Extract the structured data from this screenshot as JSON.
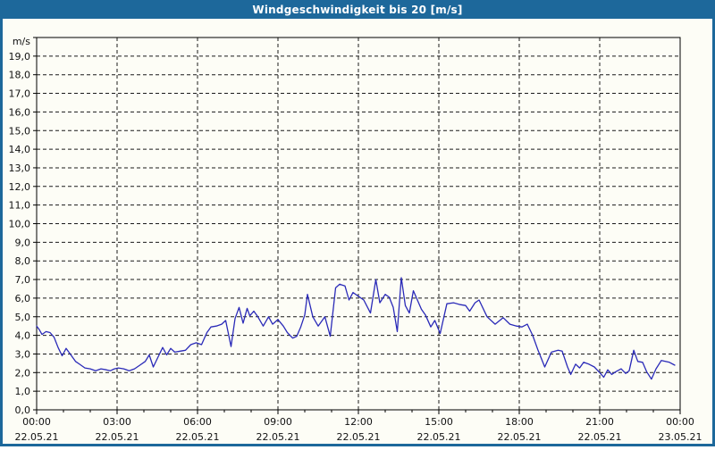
{
  "window": {
    "title": "Windgeschwindigkeit bis 20 [m/s]",
    "title_bar_color": "#1d689b",
    "border_color": "#1d689b",
    "background_color": "#fdfdf6"
  },
  "chart_data": {
    "type": "line",
    "title": "Windgeschwindigkeit bis 20 [m/s]",
    "ylabel": "m/s",
    "xlabel": "",
    "ylim": [
      0,
      20
    ],
    "y_tick_step": 1,
    "y_tick_labels": [
      "0,0",
      "1,0",
      "2,0",
      "3,0",
      "4,0",
      "5,0",
      "6,0",
      "7,0",
      "8,0",
      "9,0",
      "10,0",
      "11,0",
      "12,0",
      "13,0",
      "14,0",
      "15,0",
      "16,0",
      "17,0",
      "18,0",
      "19,0"
    ],
    "grid": "dashed horizontal every 1 m/s, dashed vertical every 3 h",
    "legend_position": "none",
    "line_color": "#2a2ab8",
    "grid_color": "#1a1a1a",
    "frame_color": "#000000",
    "plot_bg": "#fdfdf6",
    "x_range_hours": [
      0,
      24
    ],
    "x_major_ticks": [
      {
        "hour": 0,
        "time": "00:00",
        "date": "22.05.21"
      },
      {
        "hour": 3,
        "time": "03:00",
        "date": "22.05.21"
      },
      {
        "hour": 6,
        "time": "06:00",
        "date": "22.05.21"
      },
      {
        "hour": 9,
        "time": "09:00",
        "date": "22.05.21"
      },
      {
        "hour": 12,
        "time": "12:00",
        "date": "22.05.21"
      },
      {
        "hour": 15,
        "time": "15:00",
        "date": "22.05.21"
      },
      {
        "hour": 18,
        "time": "18:00",
        "date": "22.05.21"
      },
      {
        "hour": 21,
        "time": "21:00",
        "date": "22.05.21"
      },
      {
        "hour": 24,
        "time": "00:00",
        "date": "23.05.21"
      }
    ],
    "series": [
      {
        "name": "Windgeschwindigkeit",
        "unit": "m/s",
        "points": [
          [
            0,
            4.5
          ],
          [
            0.1,
            4.3
          ],
          [
            0.2,
            4.05
          ],
          [
            0.35,
            4.2
          ],
          [
            0.5,
            4.15
          ],
          [
            0.65,
            3.9
          ],
          [
            0.8,
            3.35
          ],
          [
            0.95,
            2.9
          ],
          [
            1.1,
            3.3
          ],
          [
            1.3,
            2.9
          ],
          [
            1.45,
            2.6
          ],
          [
            1.6,
            2.45
          ],
          [
            1.8,
            2.25
          ],
          [
            2,
            2.2
          ],
          [
            2.2,
            2.1
          ],
          [
            2.4,
            2.2
          ],
          [
            2.6,
            2.15
          ],
          [
            2.75,
            2.1
          ],
          [
            2.9,
            2.2
          ],
          [
            3.05,
            2.25
          ],
          [
            3.25,
            2.2
          ],
          [
            3.45,
            2.1
          ],
          [
            3.65,
            2.2
          ],
          [
            3.85,
            2.4
          ],
          [
            4.05,
            2.6
          ],
          [
            4.2,
            2.95
          ],
          [
            4.35,
            2.3
          ],
          [
            4.55,
            2.9
          ],
          [
            4.7,
            3.35
          ],
          [
            4.85,
            2.95
          ],
          [
            5,
            3.3
          ],
          [
            5.15,
            3.1
          ],
          [
            5.35,
            3.15
          ],
          [
            5.55,
            3.2
          ],
          [
            5.75,
            3.5
          ],
          [
            5.95,
            3.6
          ],
          [
            6.15,
            3.5
          ],
          [
            6.35,
            4.15
          ],
          [
            6.5,
            4.45
          ],
          [
            6.7,
            4.5
          ],
          [
            6.9,
            4.6
          ],
          [
            7.05,
            4.8
          ],
          [
            7.25,
            3.4
          ],
          [
            7.4,
            4.9
          ],
          [
            7.55,
            5.5
          ],
          [
            7.7,
            4.65
          ],
          [
            7.85,
            5.45
          ],
          [
            7.95,
            5.05
          ],
          [
            8.1,
            5.3
          ],
          [
            8.25,
            5
          ],
          [
            8.45,
            4.5
          ],
          [
            8.65,
            5
          ],
          [
            8.8,
            4.6
          ],
          [
            9,
            4.85
          ],
          [
            9.2,
            4.5
          ],
          [
            9.35,
            4.15
          ],
          [
            9.55,
            3.85
          ],
          [
            9.7,
            3.95
          ],
          [
            9.85,
            4.45
          ],
          [
            10,
            5.1
          ],
          [
            10.1,
            6.2
          ],
          [
            10.3,
            5
          ],
          [
            10.5,
            4.5
          ],
          [
            10.75,
            5
          ],
          [
            10.95,
            3.95
          ],
          [
            11.15,
            6.55
          ],
          [
            11.3,
            6.75
          ],
          [
            11.5,
            6.65
          ],
          [
            11.65,
            5.9
          ],
          [
            11.8,
            6.3
          ],
          [
            12,
            6.1
          ],
          [
            12.2,
            5.9
          ],
          [
            12.45,
            5.2
          ],
          [
            12.65,
            7
          ],
          [
            12.8,
            5.75
          ],
          [
            13,
            6.2
          ],
          [
            13.15,
            6.05
          ],
          [
            13.3,
            5.5
          ],
          [
            13.45,
            4.2
          ],
          [
            13.6,
            7.1
          ],
          [
            13.75,
            5.6
          ],
          [
            13.9,
            5.2
          ],
          [
            14.05,
            6.4
          ],
          [
            14.2,
            5.9
          ],
          [
            14.35,
            5.4
          ],
          [
            14.5,
            5.1
          ],
          [
            14.7,
            4.45
          ],
          [
            14.85,
            4.8
          ],
          [
            15.05,
            4.1
          ],
          [
            15.3,
            5.7
          ],
          [
            15.55,
            5.75
          ],
          [
            15.8,
            5.65
          ],
          [
            16,
            5.6
          ],
          [
            16.15,
            5.3
          ],
          [
            16.35,
            5.75
          ],
          [
            16.5,
            5.9
          ],
          [
            16.8,
            5
          ],
          [
            17.1,
            4.6
          ],
          [
            17.4,
            4.95
          ],
          [
            17.65,
            4.6
          ],
          [
            17.9,
            4.5
          ],
          [
            18.1,
            4.45
          ],
          [
            18.3,
            4.6
          ],
          [
            18.5,
            4
          ],
          [
            18.7,
            3.2
          ],
          [
            18.95,
            2.3
          ],
          [
            19.2,
            3.1
          ],
          [
            19.45,
            3.2
          ],
          [
            19.6,
            3.15
          ],
          [
            19.8,
            2.3
          ],
          [
            19.92,
            1.9
          ],
          [
            20.1,
            2.45
          ],
          [
            20.25,
            2.25
          ],
          [
            20.4,
            2.55
          ],
          [
            20.6,
            2.45
          ],
          [
            20.8,
            2.3
          ],
          [
            21,
            2
          ],
          [
            21.15,
            1.75
          ],
          [
            21.3,
            2.15
          ],
          [
            21.45,
            1.9
          ],
          [
            21.6,
            2.05
          ],
          [
            21.8,
            2.2
          ],
          [
            21.97,
            1.95
          ],
          [
            22.1,
            2.1
          ],
          [
            22.27,
            3.2
          ],
          [
            22.42,
            2.6
          ],
          [
            22.6,
            2.55
          ],
          [
            22.75,
            2.05
          ],
          [
            22.93,
            1.65
          ],
          [
            23.1,
            2.2
          ],
          [
            23.3,
            2.65
          ],
          [
            23.45,
            2.6
          ],
          [
            23.6,
            2.55
          ],
          [
            23.8,
            2.4
          ]
        ]
      }
    ]
  }
}
